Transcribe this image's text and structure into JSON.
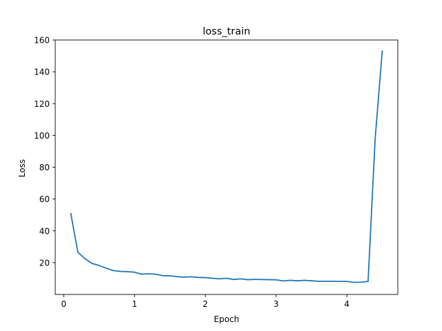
{
  "chart_data": {
    "type": "line",
    "title": "loss_train",
    "xlabel": "Epoch",
    "ylabel": "Loss",
    "xlim": [
      -0.12,
      4.72
    ],
    "ylim": [
      0,
      160
    ],
    "xticks": [
      0,
      1,
      2,
      3,
      4
    ],
    "yticks": [
      20,
      40,
      60,
      80,
      100,
      120,
      140,
      160
    ],
    "grid": false,
    "series": [
      {
        "color": "#1f77b4",
        "x": [
          0.1,
          0.2,
          0.3,
          0.4,
          0.5,
          0.6,
          0.7,
          0.8,
          0.9,
          1.0,
          1.1,
          1.2,
          1.3,
          1.4,
          1.5,
          1.6,
          1.7,
          1.8,
          1.9,
          2.0,
          2.1,
          2.2,
          2.3,
          2.4,
          2.5,
          2.6,
          2.7,
          2.8,
          2.9,
          3.0,
          3.1,
          3.2,
          3.3,
          3.4,
          3.5,
          3.6,
          3.7,
          3.8,
          3.9,
          4.0,
          4.1,
          4.2,
          4.3,
          4.4,
          4.5
        ],
        "y": [
          50.8,
          26.5,
          22.5,
          19.5,
          18.2,
          16.5,
          15.0,
          14.5,
          14.3,
          14.0,
          12.8,
          13.0,
          12.7,
          11.8,
          11.7,
          11.2,
          10.9,
          11.1,
          10.7,
          10.6,
          10.2,
          9.8,
          10.2,
          9.4,
          9.8,
          9.3,
          9.5,
          9.4,
          9.3,
          9.2,
          8.5,
          8.9,
          8.6,
          8.9,
          8.6,
          8.3,
          8.3,
          8.3,
          8.2,
          8.2,
          7.6,
          7.7,
          8.2,
          98.0,
          153.0
        ]
      }
    ]
  }
}
